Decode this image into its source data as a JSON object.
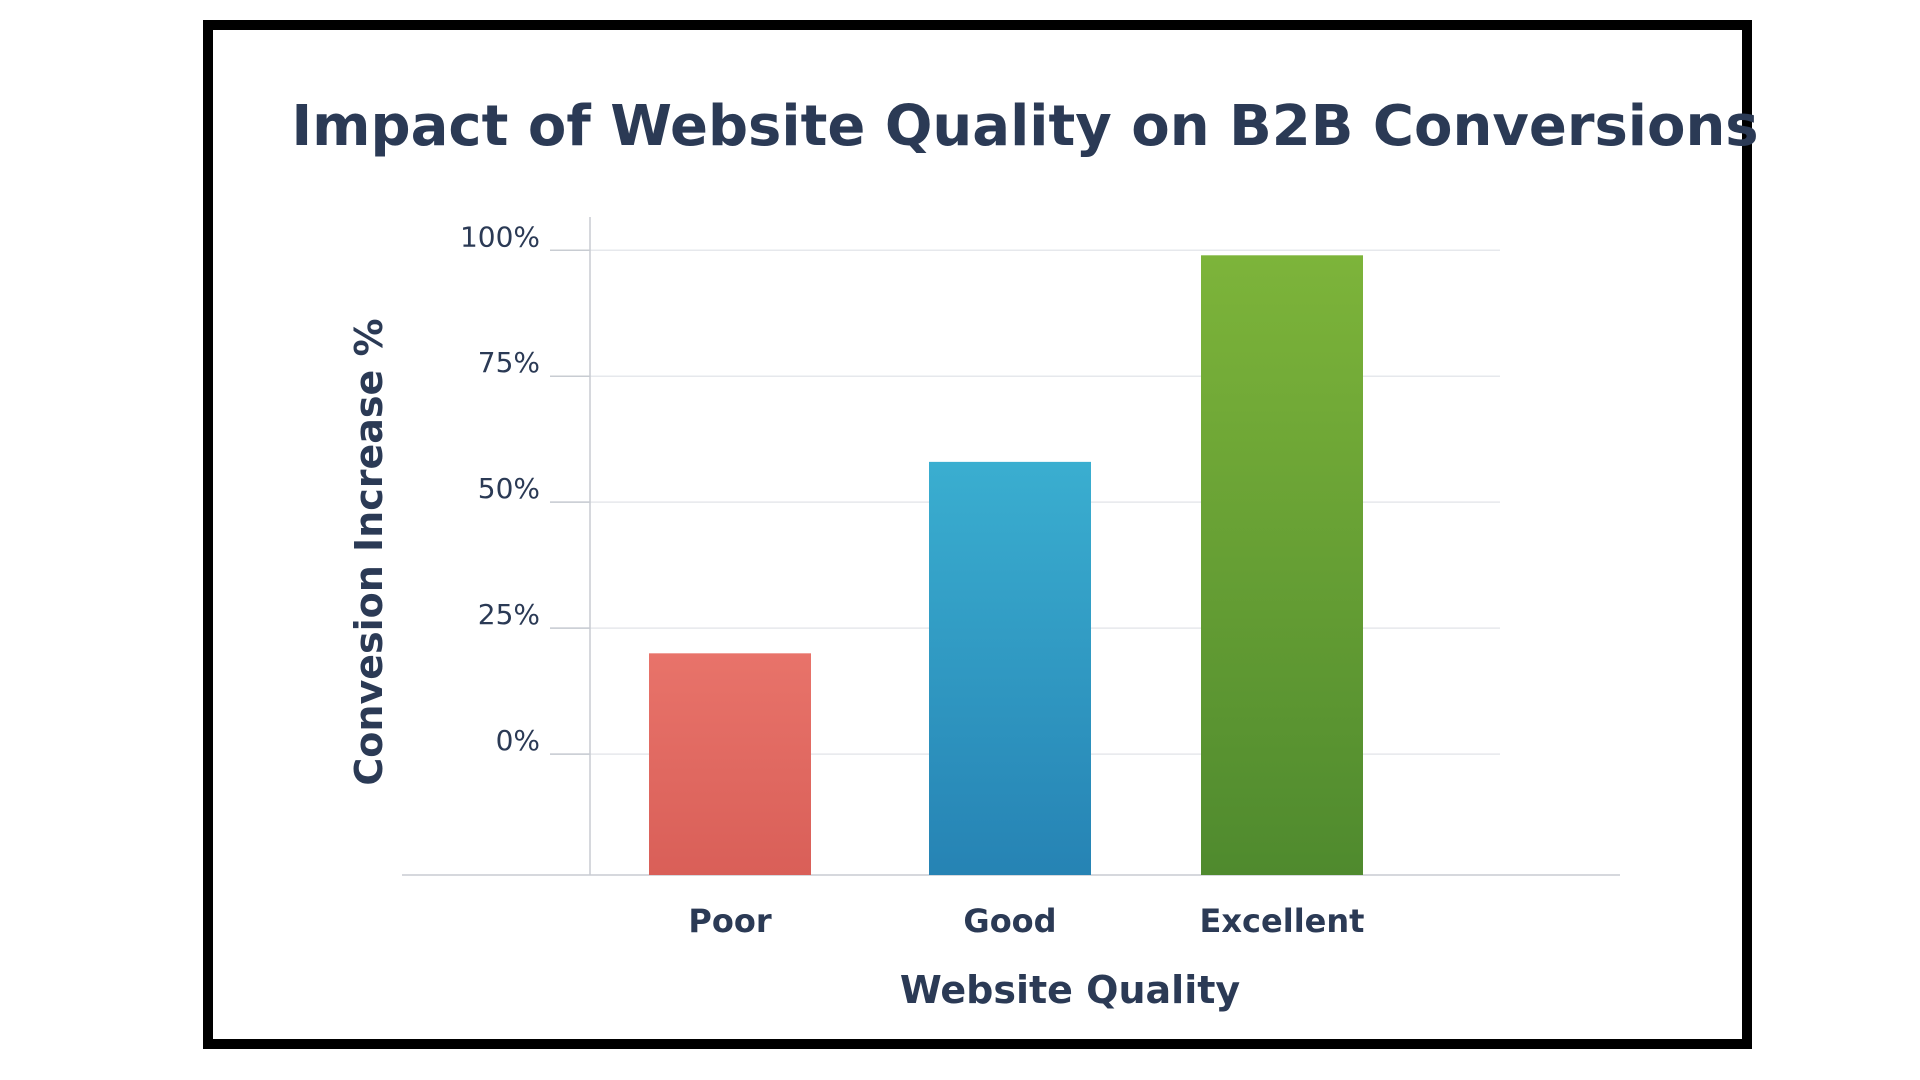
{
  "chart_data": {
    "type": "bar",
    "title": "Impact of Website Quality on B2B Conversions",
    "xlabel": "Website Quality",
    "ylabel": "Convesion Increase %",
    "categories": [
      "Poor",
      "Good",
      "Excellent"
    ],
    "values": [
      20,
      58,
      99
    ],
    "yticks": [
      {
        "value": 0,
        "label": "0%"
      },
      {
        "value": 25,
        "label": "25%"
      },
      {
        "value": 50,
        "label": "50%"
      },
      {
        "value": 75,
        "label": "75%"
      },
      {
        "value": 100,
        "label": "100%"
      }
    ],
    "ylim": [
      -24,
      107
    ],
    "grid": true,
    "colors": {
      "bars": [
        {
          "top": "#e8736a",
          "bottom": "#d95f58"
        },
        {
          "top": "#3aaed0",
          "bottom": "#2683b4"
        },
        {
          "top": "#7db43a",
          "bottom": "#4f8a2e"
        }
      ],
      "text": "#2b3a55",
      "grid": "#e6e8ec",
      "axis": "#c8ccd2"
    }
  }
}
